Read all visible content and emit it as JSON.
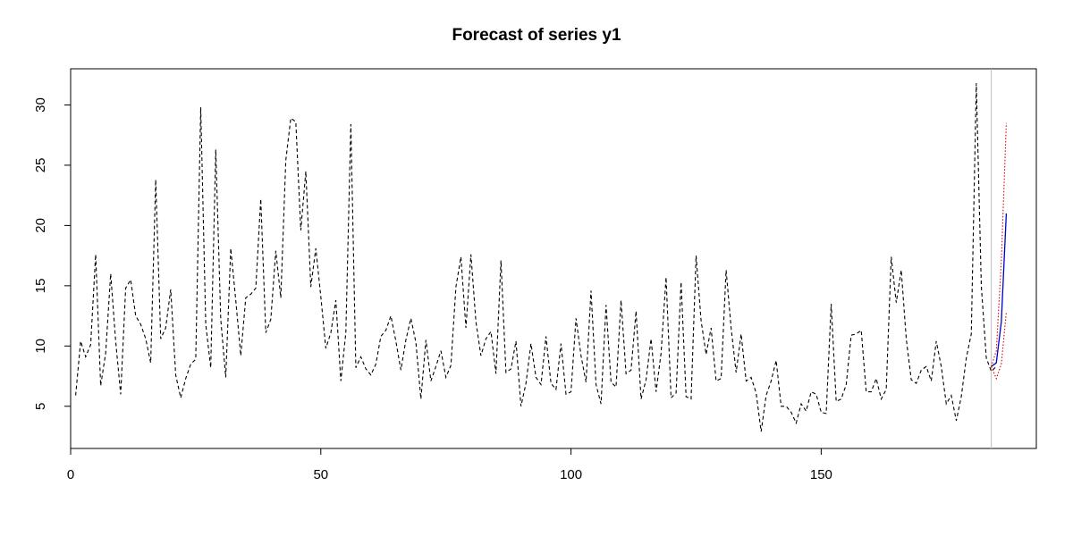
{
  "chart_data": {
    "type": "line",
    "title": "Forecast of series y1",
    "xlabel": "",
    "ylabel": "",
    "xlim": [
      0,
      193
    ],
    "ylim": [
      1.5,
      33
    ],
    "x_ticks": [
      0,
      50,
      100,
      150
    ],
    "y_ticks": [
      5,
      10,
      15,
      20,
      25,
      30
    ],
    "grid": false,
    "legend": "none",
    "forecast_start_x": 184,
    "colors": {
      "observed": "#000000",
      "forecast": "#0000cc",
      "interval": "#dd0000",
      "forecast_divider": "#bebebe"
    },
    "series": [
      {
        "x_start": 1,
        "style": "dashed",
        "values": [
          5.9,
          10.4,
          9.1,
          10.1,
          17.6,
          6.7,
          9.4,
          16.0,
          10.4,
          6.0,
          14.8,
          15.5,
          12.5,
          11.8,
          10.6,
          8.6,
          23.8,
          10.6,
          11.5,
          14.7,
          7.6,
          5.7,
          7.3,
          8.5,
          8.9,
          29.8,
          11.8,
          8.2,
          26.3,
          12.2,
          7.4,
          18.1,
          13.8,
          9.2,
          14.0,
          14.3,
          14.8,
          22.2,
          11.1,
          12.2,
          17.9,
          14.0,
          25.4,
          28.9,
          28.6,
          19.6,
          24.5,
          14.9,
          18.1,
          14.1,
          9.8,
          11.1,
          13.8,
          7.1,
          11.1,
          28.4,
          8.2,
          9.1,
          8.1,
          7.6,
          8.5,
          10.8,
          11.3,
          12.5,
          10.4,
          8.0,
          10.5,
          12.3,
          10.3,
          5.6,
          10.5,
          7.1,
          8.3,
          9.6,
          7.4,
          8.4,
          14.9,
          17.4,
          11.5,
          17.6,
          12.0,
          9.2,
          10.6,
          11.2,
          7.7,
          17.1,
          7.8,
          8.1,
          10.4,
          5.0,
          6.9,
          10.2,
          7.4,
          6.8,
          10.8,
          6.9,
          6.4,
          10.2,
          6.0,
          6.2,
          12.3,
          9.2,
          7.0,
          14.6,
          6.8,
          5.2,
          13.4,
          7.0,
          6.6,
          13.8,
          7.7,
          8.0,
          12.9,
          5.6,
          7.2,
          10.6,
          6.2,
          9.4,
          15.7,
          5.7,
          6.1,
          15.3,
          5.8,
          5.6,
          17.5,
          12.1,
          9.3,
          11.5,
          7.1,
          7.3,
          16.3,
          11.5,
          7.8,
          11.0,
          7.1,
          7.4,
          6.1,
          2.9,
          5.9,
          7.1,
          8.8,
          5.0,
          5.0,
          4.5,
          3.6,
          5.2,
          4.6,
          6.2,
          6.0,
          4.5,
          4.4,
          13.5,
          5.4,
          5.6,
          6.8,
          10.9,
          11.0,
          11.3,
          6.2,
          6.2,
          7.3,
          5.6,
          6.4,
          17.4,
          13.6,
          16.3,
          10.6,
          7.2,
          6.9,
          8.0,
          8.3,
          7.1,
          10.4,
          8.3,
          5.2,
          5.9,
          3.8,
          5.8,
          9.0,
          11.0,
          31.8,
          15.0,
          9.0,
          7.9,
          8.3
        ]
      },
      {
        "x": [
          184,
          185,
          186,
          187
        ],
        "style": "solid",
        "values": [
          8.3,
          8.6,
          12.0,
          21.0
        ]
      },
      {
        "x": [
          184,
          185,
          186,
          187
        ],
        "style": "dotted",
        "values": [
          8.3,
          9.6,
          17.0,
          28.5
        ]
      },
      {
        "x": [
          184,
          185,
          186,
          187
        ],
        "style": "dotted",
        "values": [
          8.3,
          7.3,
          8.5,
          12.8
        ]
      }
    ]
  }
}
